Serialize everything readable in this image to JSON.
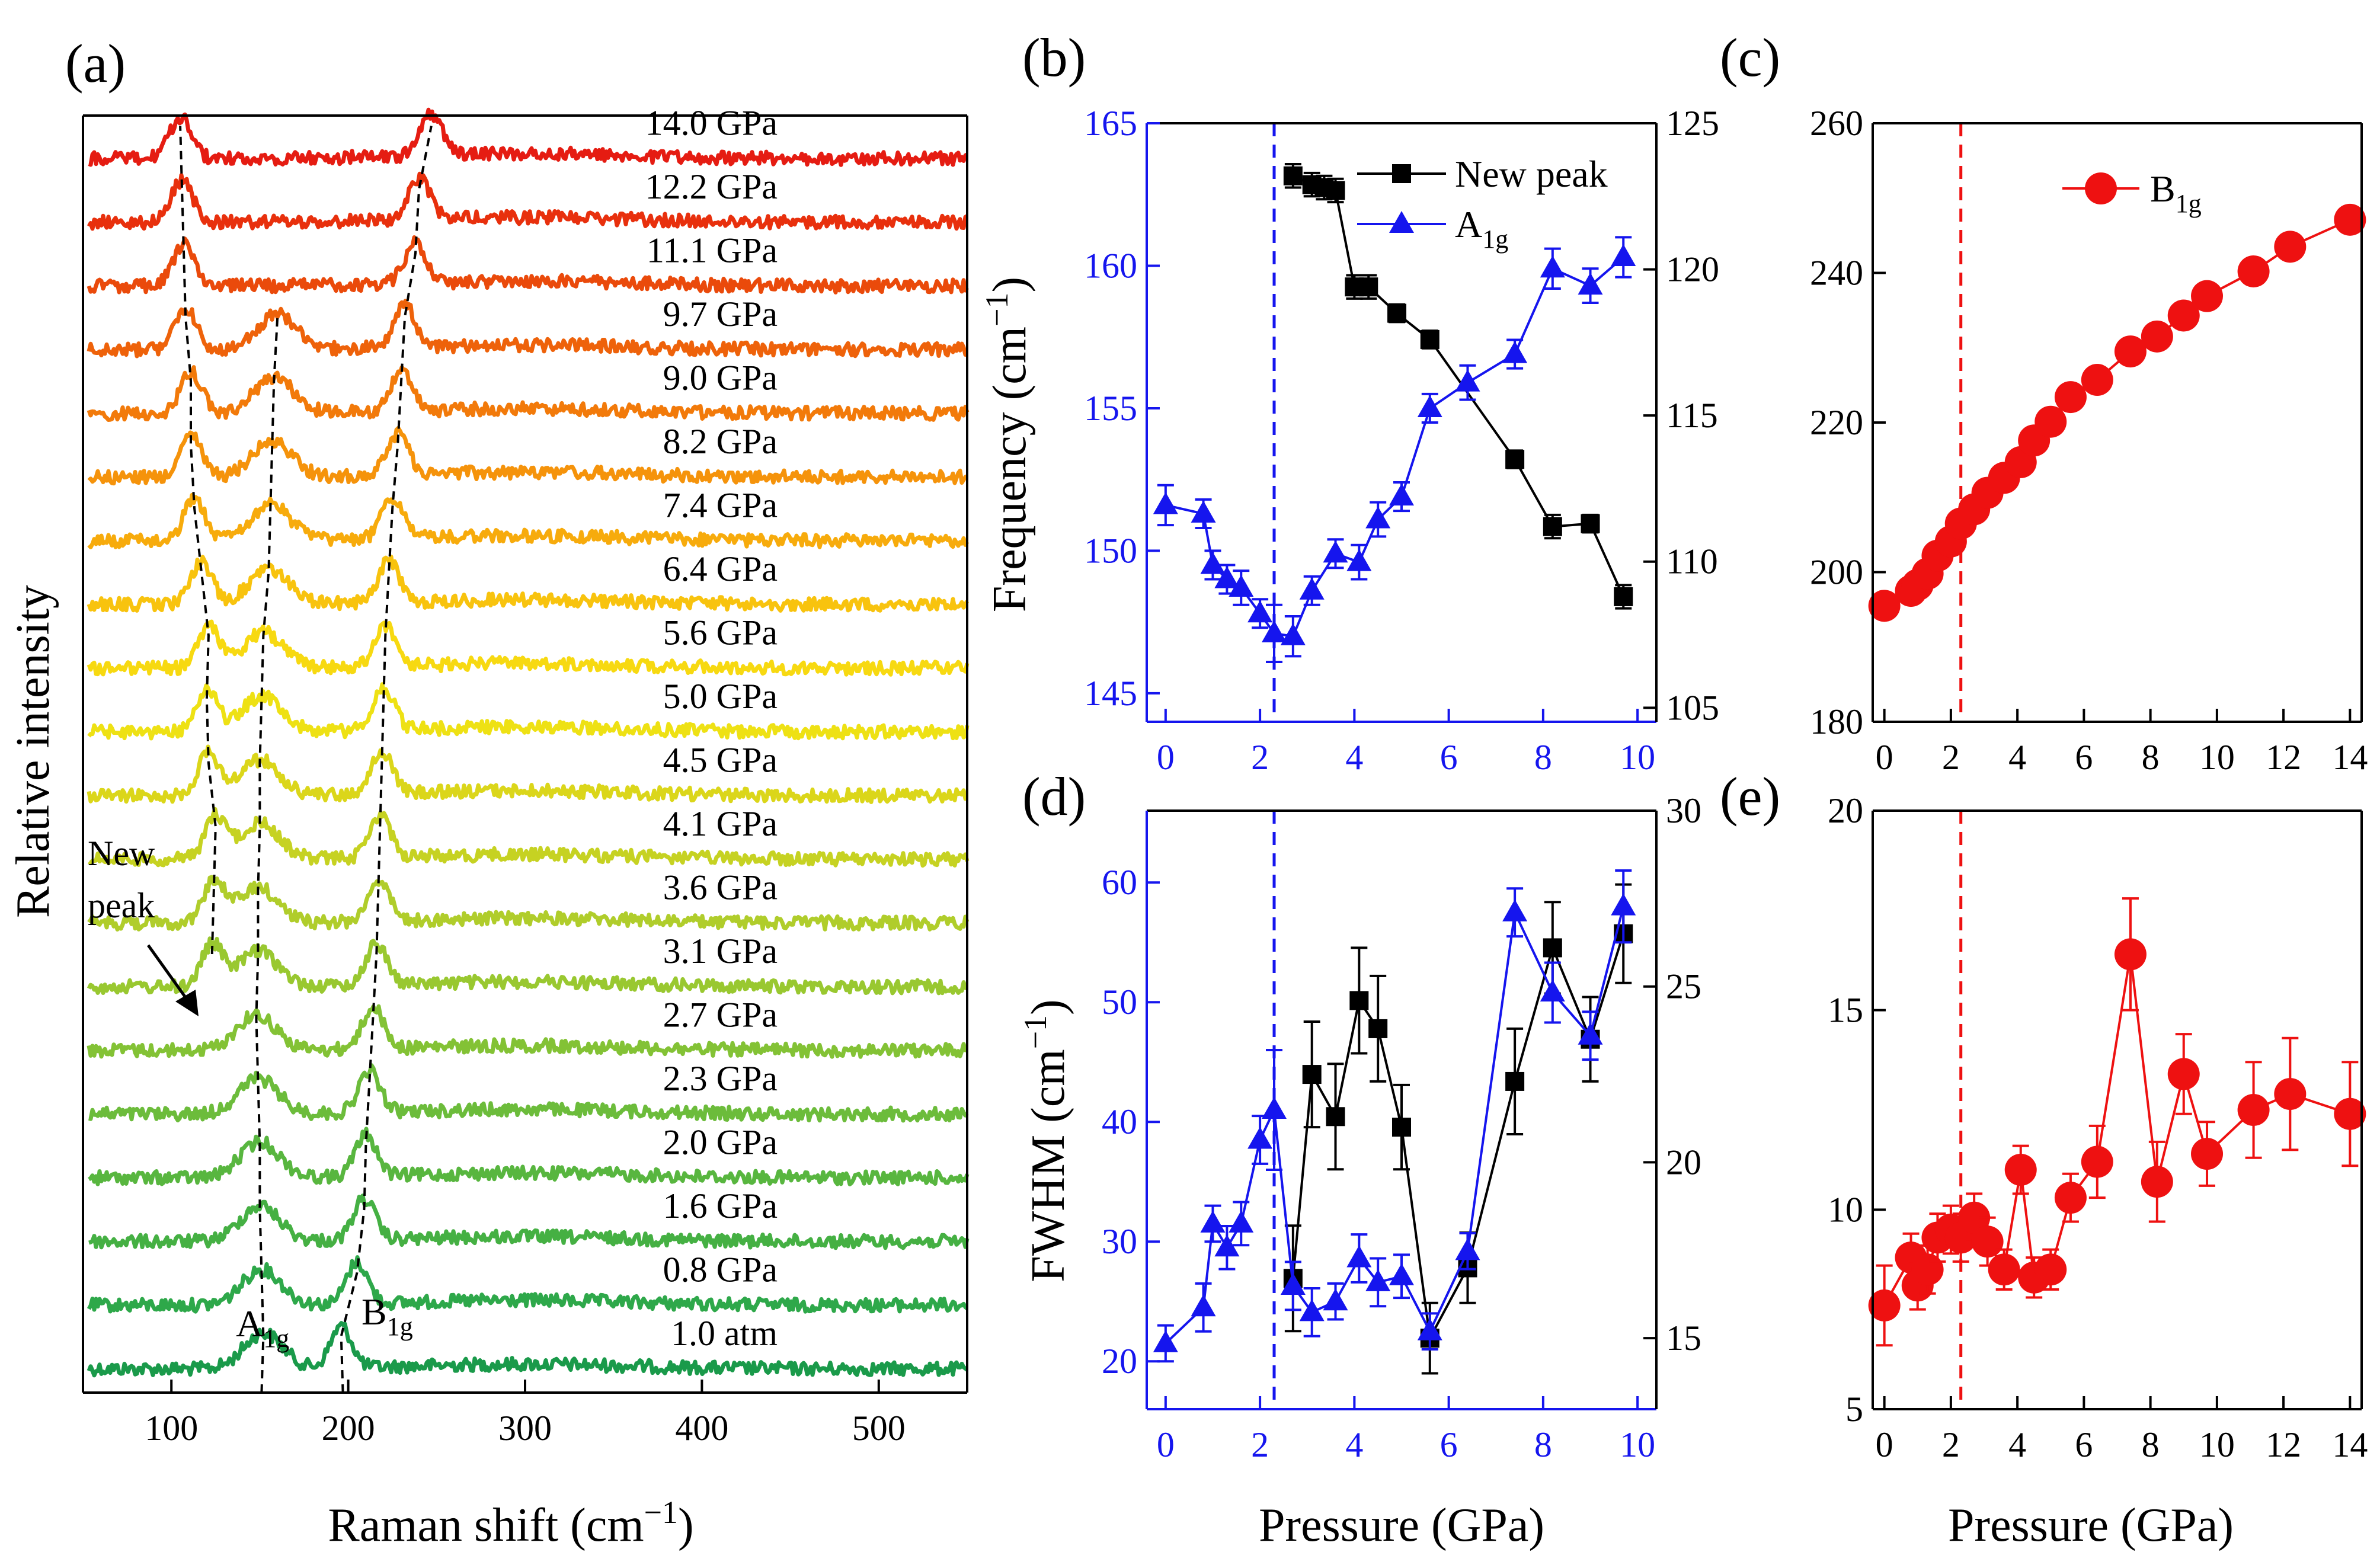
{
  "figure": {
    "panel_labels": [
      "(a)",
      "(b)",
      "(c)",
      "(d)",
      "(e)"
    ]
  },
  "chart_data": [
    {
      "id": "a",
      "type": "line",
      "title": "",
      "xlabel": "Raman shift (cm",
      "xlabel_sup": "−1",
      "xlabel_tail": ")",
      "ylabel": "Relative intensity",
      "xlim": [
        50,
        550
      ],
      "xticks": [
        100,
        200,
        300,
        400,
        500
      ],
      "pressures": [
        "1.0 atm",
        "0.8 GPa",
        "1.6 GPa",
        "2.0 GPa",
        "2.3 GPa",
        "2.7 GPa",
        "3.1 GPa",
        "3.6 GPa",
        "4.1 GPa",
        "4.5 GPa",
        "5.0 GPa",
        "5.6 GPa",
        "6.4 GPa",
        "7.4 GPa",
        "8.2 GPa",
        "9.0 GPa",
        "9.7 GPa",
        "11.1 GPa",
        "12.2 GPa",
        "14.0 GPa"
      ],
      "colors": [
        "#1a9a4a",
        "#2ea84a",
        "#45b043",
        "#58b63f",
        "#6cbc3b",
        "#83c235",
        "#99c830",
        "#b0cd2b",
        "#c6d222",
        "#dbd61a",
        "#eee114",
        "#f7d911",
        "#f8c30e",
        "#f7ab0c",
        "#f5930b",
        "#f27a0a",
        "#ee620a",
        "#ea4a0b",
        "#e8300d",
        "#e51c12"
      ],
      "peaks": {
        "new_peak": [
          null,
          null,
          null,
          null,
          null,
          null,
          123,
          124,
          125,
          121,
          120,
          121,
          117,
          113,
          111,
          111,
          108,
          107,
          106,
          105
        ],
        "A1g": [
          152,
          151,
          150,
          150,
          149,
          148,
          149,
          149,
          150,
          150,
          151,
          152,
          155,
          156,
          157,
          158,
          160,
          null,
          null,
          null
        ],
        "B1g": [
          196,
          205,
          209,
          210,
          212,
          214,
          216,
          217,
          218,
          219,
          220,
          221,
          223,
          225,
          228,
          230,
          232,
          238,
          240,
          247
        ]
      },
      "annotations": {
        "new_peak": [
          "New",
          "peak"
        ],
        "A1g": [
          "A",
          "1g"
        ],
        "B1g": [
          "B",
          "1g"
        ]
      }
    },
    {
      "id": "b",
      "type": "line",
      "xlim": [
        -0.4,
        10.4
      ],
      "xticks": [
        0,
        2,
        4,
        6,
        8,
        10
      ],
      "ylabel": "Frequency (cm",
      "ylabel_sup": "−1",
      "ylabel_tail": ")",
      "ylim_left": [
        144,
        165
      ],
      "yticks_left": [
        145,
        150,
        155,
        160,
        165
      ],
      "ylim_right": [
        104.52,
        125
      ],
      "yticks_right": [
        105,
        110,
        115,
        120,
        125
      ],
      "vline": 2.3,
      "series": [
        {
          "name": "New peak",
          "axis": "right",
          "color": "#000000",
          "marker": "square",
          "x": [
            2.7,
            3.1,
            3.36,
            3.6,
            4.0,
            4.3,
            4.9,
            5.6,
            7.4,
            8.2,
            9.0,
            9.7
          ],
          "y": [
            123.2,
            122.9,
            122.8,
            122.7,
            119.4,
            119.4,
            118.5,
            117.6,
            113.5,
            111.2,
            111.3,
            108.8
          ],
          "err": [
            0.4,
            0.4,
            0.4,
            0.4,
            0.4,
            0.4,
            0.3,
            0.3,
            0.3,
            0.4,
            0.3,
            0.4
          ]
        },
        {
          "name": "A",
          "name_sub": "1g",
          "axis": "left",
          "color": "#1515ee",
          "marker": "triangle",
          "x": [
            0,
            0.8,
            1.0,
            1.3,
            1.6,
            2.0,
            2.3,
            2.7,
            3.1,
            3.6,
            4.1,
            4.5,
            5.0,
            5.6,
            6.4,
            7.4,
            8.2,
            9.0,
            9.7
          ],
          "y": [
            151.6,
            151.3,
            149.5,
            149.0,
            148.7,
            147.8,
            147.1,
            147.0,
            148.6,
            149.9,
            149.6,
            151.1,
            151.9,
            155.0,
            155.9,
            156.9,
            159.9,
            159.3,
            160.3
          ],
          "err": [
            0.7,
            0.5,
            0.5,
            0.5,
            0.6,
            0.5,
            1.0,
            0.7,
            0.5,
            0.5,
            0.6,
            0.6,
            0.5,
            0.5,
            0.6,
            0.5,
            0.7,
            0.6,
            0.7
          ]
        }
      ]
    },
    {
      "id": "c",
      "type": "line",
      "xlim": [
        -0.35,
        14.35
      ],
      "xticks": [
        0,
        2,
        4,
        6,
        8,
        10,
        12,
        14
      ],
      "ylim": [
        180,
        260
      ],
      "yticks": [
        180,
        200,
        220,
        240,
        260
      ],
      "vline": 2.3,
      "series": [
        {
          "name": "B",
          "name_sub": "1g",
          "color": "#ee1111",
          "marker": "circle",
          "x": [
            0,
            0.8,
            1.0,
            1.3,
            1.6,
            2.0,
            2.3,
            2.7,
            3.1,
            3.6,
            4.1,
            4.5,
            5.0,
            5.6,
            6.4,
            7.4,
            8.2,
            9.0,
            9.7,
            11.1,
            12.2,
            14.0
          ],
          "y": [
            195.5,
            197.5,
            198.3,
            199.8,
            202.2,
            204.1,
            206.5,
            208.4,
            210.6,
            212.6,
            214.7,
            217.6,
            220.1,
            223.4,
            225.7,
            229.5,
            231.5,
            234.3,
            236.9,
            240.2,
            243.5,
            247.1
          ]
        }
      ]
    },
    {
      "id": "d",
      "type": "line",
      "xlim": [
        -0.4,
        10.4
      ],
      "xticks": [
        0,
        2,
        4,
        6,
        8,
        10
      ],
      "ylabel": "FWHM (cm",
      "ylabel_sup": "−1",
      "ylabel_tail": ")",
      "xlabel": "Pressure (GPa)",
      "ylim_left": [
        16,
        66
      ],
      "yticks_left": [
        20,
        30,
        40,
        50,
        60
      ],
      "ylim_right": [
        12.98,
        30
      ],
      "yticks_right": [
        15,
        20,
        25,
        30
      ],
      "vline": 2.3,
      "series": [
        {
          "name": "New peak",
          "axis": "right",
          "color": "#000000",
          "marker": "square",
          "x": [
            2.7,
            3.1,
            3.6,
            4.1,
            4.5,
            5.0,
            5.6,
            6.4,
            7.4,
            8.2,
            9.0,
            9.7
          ],
          "y": [
            16.7,
            22.5,
            21.3,
            24.6,
            23.8,
            21.0,
            15.0,
            17.0,
            22.3,
            26.1,
            23.5,
            26.5
          ],
          "err": [
            1.5,
            1.5,
            1.5,
            1.5,
            1.5,
            1.2,
            1.0,
            1.0,
            1.5,
            1.3,
            1.2,
            1.4
          ]
        },
        {
          "name": "A",
          "name_sub": "1g",
          "axis": "left",
          "color": "#1515ee",
          "marker": "triangle",
          "x": [
            0,
            0.8,
            1.0,
            1.3,
            1.6,
            2.0,
            2.3,
            2.7,
            3.1,
            3.6,
            4.1,
            4.5,
            5.0,
            5.6,
            6.4,
            7.4,
            8.2,
            9.0,
            9.7
          ],
          "y": [
            21.5,
            24.5,
            31.5,
            29.5,
            31.5,
            38.5,
            41.0,
            26.3,
            24.1,
            25.0,
            28.6,
            26.6,
            27.1,
            22.5,
            29.2,
            57.5,
            50.8,
            47.2,
            58.0
          ],
          "err": [
            1.5,
            2.0,
            1.5,
            1.8,
            1.8,
            2.0,
            5.0,
            2.0,
            2.0,
            1.5,
            2.0,
            2.0,
            1.8,
            1.5,
            1.5,
            2.0,
            2.5,
            2.0,
            3.0
          ]
        }
      ]
    },
    {
      "id": "e",
      "type": "line",
      "xlim": [
        -0.35,
        14.35
      ],
      "xticks": [
        0,
        2,
        4,
        6,
        8,
        10,
        12,
        14
      ],
      "xlabel": "Pressure (GPa)",
      "ylim": [
        5,
        20
      ],
      "yticks": [
        5,
        10,
        15,
        20
      ],
      "vline": 2.3,
      "series": [
        {
          "name": "B",
          "name_sub": "1g",
          "color": "#ee1111",
          "marker": "circle",
          "x": [
            0,
            0.8,
            1.0,
            1.3,
            1.6,
            2.0,
            2.3,
            2.7,
            3.1,
            3.6,
            4.1,
            4.5,
            5.0,
            5.6,
            6.4,
            7.4,
            8.2,
            9.0,
            9.7,
            11.1,
            12.2,
            14.0
          ],
          "y": [
            7.6,
            8.8,
            8.1,
            8.5,
            9.3,
            9.5,
            9.3,
            9.8,
            9.2,
            8.5,
            11.0,
            8.3,
            8.5,
            10.3,
            11.2,
            16.4,
            10.7,
            13.4,
            11.4,
            12.5,
            12.9,
            12.4
          ],
          "err": [
            1.0,
            0.6,
            0.6,
            0.6,
            0.6,
            0.6,
            0.6,
            0.6,
            0.6,
            0.5,
            0.6,
            0.5,
            0.5,
            0.6,
            0.9,
            1.4,
            1.0,
            1.0,
            0.8,
            1.2,
            1.4,
            1.3
          ]
        }
      ]
    }
  ]
}
